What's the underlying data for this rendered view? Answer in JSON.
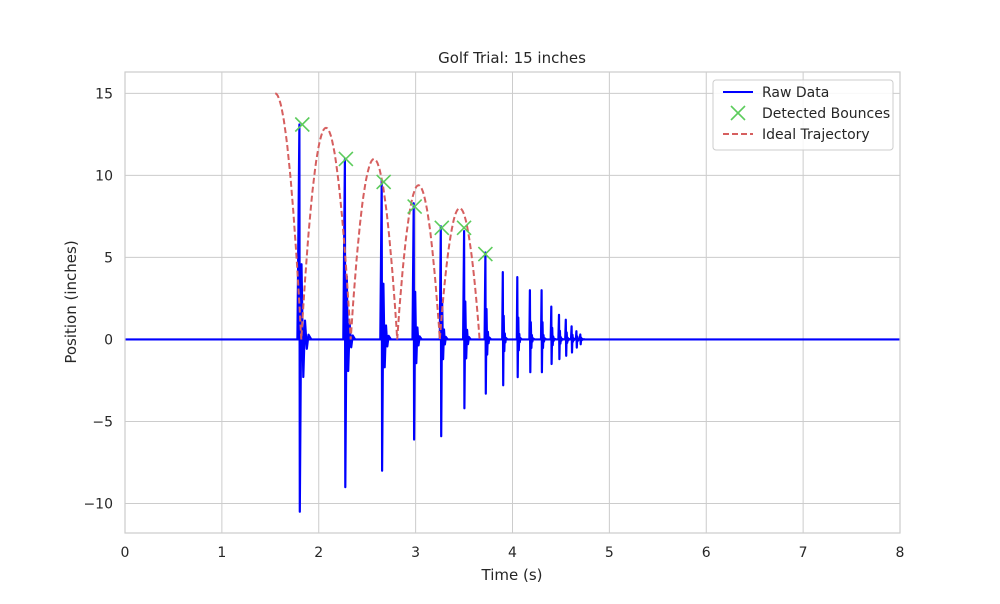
{
  "chart_data": {
    "type": "line",
    "title": "Golf Trial: 15 inches",
    "xlabel": "Time (s)",
    "ylabel": "Position (inches)",
    "xlim": [
      0,
      8
    ],
    "ylim": [
      -11.8,
      16.3
    ],
    "xticks": [
      0,
      1,
      2,
      3,
      4,
      5,
      6,
      7,
      8
    ],
    "xtick_labels": [
      "0",
      "1",
      "2",
      "3",
      "4",
      "5",
      "6",
      "7",
      "8"
    ],
    "yticks": [
      15,
      10,
      5,
      0,
      -5,
      -10
    ],
    "ytick_labels": [
      "15",
      "10",
      "5",
      "0",
      "−5",
      "−10"
    ],
    "grid": true,
    "legend_position": "top-right",
    "series": [
      {
        "name": "Raw Data",
        "style": "line",
        "color": "#0000ff",
        "spikes": [
          {
            "x": 1.8,
            "max": 13.1,
            "min": -10.5
          },
          {
            "x": 2.27,
            "max": 11.0,
            "min": -9.0
          },
          {
            "x": 2.65,
            "max": 9.7,
            "min": -8.0
          },
          {
            "x": 2.98,
            "max": 8.3,
            "min": -6.1
          },
          {
            "x": 3.26,
            "max": 6.9,
            "min": -5.9
          },
          {
            "x": 3.5,
            "max": 6.6,
            "min": -4.2
          },
          {
            "x": 3.72,
            "max": 5.3,
            "min": -3.3
          },
          {
            "x": 3.9,
            "max": 4.1,
            "min": -2.8
          },
          {
            "x": 4.05,
            "max": 3.8,
            "min": -2.3
          },
          {
            "x": 4.18,
            "max": 3.0,
            "min": -2.0
          },
          {
            "x": 4.3,
            "max": 3.0,
            "min": -2.0
          },
          {
            "x": 4.4,
            "max": 2.0,
            "min": -1.5
          },
          {
            "x": 4.48,
            "max": 1.5,
            "min": -1.2
          },
          {
            "x": 4.55,
            "max": 1.2,
            "min": -1.0
          },
          {
            "x": 4.61,
            "max": 0.8,
            "min": -0.8
          },
          {
            "x": 4.66,
            "max": 0.5,
            "min": -0.5
          },
          {
            "x": 4.7,
            "max": 0.3,
            "min": -0.3
          }
        ]
      },
      {
        "name": "Detected Bounces",
        "style": "marker-x",
        "color": "#5ccc5c",
        "points": [
          {
            "x": 1.83,
            "y": 13.1
          },
          {
            "x": 2.28,
            "y": 11.0
          },
          {
            "x": 2.67,
            "y": 9.6
          },
          {
            "x": 2.99,
            "y": 8.1
          },
          {
            "x": 3.27,
            "y": 6.8
          },
          {
            "x": 3.5,
            "y": 6.8
          },
          {
            "x": 3.72,
            "y": 5.2
          }
        ]
      },
      {
        "name": "Ideal Trajectory",
        "style": "dashed",
        "color": "#d65f5f",
        "start": {
          "x": 1.55,
          "y": 15.0
        },
        "ground_contacts": [
          1.82,
          2.33,
          2.81,
          3.25,
          3.66
        ],
        "arc_peaks": [
          12.9,
          11.0,
          9.4,
          8.0
        ]
      }
    ]
  }
}
